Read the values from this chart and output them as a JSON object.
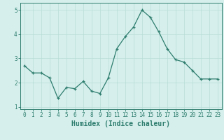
{
  "x": [
    0,
    1,
    2,
    3,
    4,
    5,
    6,
    7,
    8,
    9,
    10,
    11,
    12,
    13,
    14,
    15,
    16,
    17,
    18,
    19,
    20,
    21,
    22,
    23
  ],
  "y": [
    2.7,
    2.4,
    2.4,
    2.2,
    1.35,
    1.8,
    1.75,
    2.05,
    1.65,
    1.55,
    2.2,
    3.4,
    3.9,
    4.3,
    5.0,
    4.7,
    4.1,
    3.4,
    2.95,
    2.85,
    2.5,
    2.15,
    2.15,
    2.15
  ],
  "xlabel": "Humidex (Indice chaleur)",
  "ylim": [
    0.9,
    5.3
  ],
  "xlim": [
    -0.5,
    23.5
  ],
  "yticks": [
    1,
    2,
    3,
    4,
    5
  ],
  "xticks": [
    0,
    1,
    2,
    3,
    4,
    5,
    6,
    7,
    8,
    9,
    10,
    11,
    12,
    13,
    14,
    15,
    16,
    17,
    18,
    19,
    20,
    21,
    22,
    23
  ],
  "line_color": "#2e7d6e",
  "marker": "+",
  "bg_color": "#d6efec",
  "grid_color": "#b8ddd8",
  "tick_fontsize": 5.5,
  "xlabel_fontsize": 7.0,
  "xlabel_fontweight": "bold"
}
